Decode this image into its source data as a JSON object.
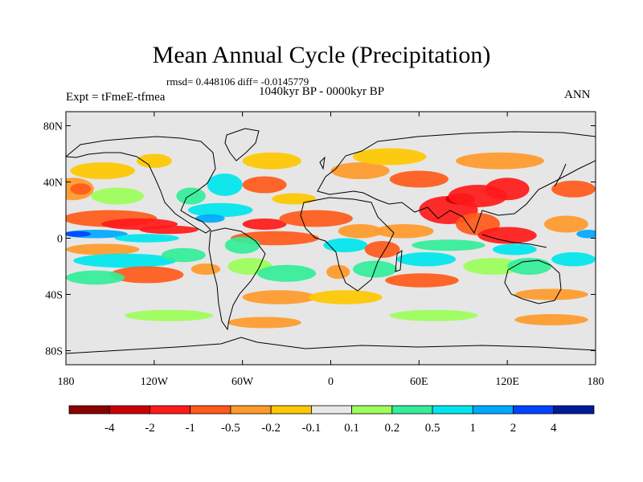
{
  "title": "Mean Annual Cycle (Precipitation)",
  "stats": "rmsd= 0.448106 diff= -0.0145779",
  "period": "1040kyr BP - 0000kyr BP",
  "experiment": "Expt = tFmeE-tfmea",
  "season": "ANN",
  "axes": {
    "lat_ticks": [
      {
        "label": "80N",
        "value": 80
      },
      {
        "label": "40N",
        "value": 40
      },
      {
        "label": "0",
        "value": 0
      },
      {
        "label": "40S",
        "value": -40
      },
      {
        "label": "80S",
        "value": -80
      }
    ],
    "lon_ticks": [
      {
        "label": "180",
        "value": -180
      },
      {
        "label": "120W",
        "value": -120
      },
      {
        "label": "60W",
        "value": -60
      },
      {
        "label": "0",
        "value": 0
      },
      {
        "label": "60E",
        "value": 60
      },
      {
        "label": "120E",
        "value": 120
      },
      {
        "label": "180",
        "value": 180
      }
    ],
    "lon_range": [
      -180,
      180
    ],
    "lat_range": [
      -90,
      90
    ]
  },
  "colorbar": {
    "colors": [
      "#8b0000",
      "#cc0000",
      "#ff1a1a",
      "#ff5a1a",
      "#ff9a2a",
      "#ffc800",
      "#e8e8e8",
      "#9cff5a",
      "#33ee99",
      "#00e6ee",
      "#00a8ff",
      "#0044ff",
      "#001a99"
    ],
    "labels": [
      "-4",
      "-2",
      "-1",
      "-0.5",
      "-0.2",
      "-0.1",
      "0.1",
      "0.2",
      "0.5",
      "1",
      "2",
      "4"
    ]
  },
  "field": {
    "background_color": "#e6e6e6",
    "blobs": [
      {
        "lon": -175,
        "lat": 35,
        "rx": 14,
        "ry": 8,
        "level": 4
      },
      {
        "lon": -170,
        "lat": 35,
        "rx": 7,
        "ry": 4,
        "level": 3
      },
      {
        "lon": -155,
        "lat": 48,
        "rx": 22,
        "ry": 6,
        "level": 5
      },
      {
        "lon": -120,
        "lat": 55,
        "rx": 12,
        "ry": 5,
        "level": 5
      },
      {
        "lon": -145,
        "lat": 30,
        "rx": 18,
        "ry": 6,
        "level": 7
      },
      {
        "lon": -150,
        "lat": 14,
        "rx": 32,
        "ry": 6,
        "level": 3
      },
      {
        "lon": -130,
        "lat": 10,
        "rx": 26,
        "ry": 4,
        "level": 2
      },
      {
        "lon": -110,
        "lat": 6,
        "rx": 20,
        "ry": 3,
        "level": 2
      },
      {
        "lon": -160,
        "lat": 3,
        "rx": 22,
        "ry": 3,
        "level": 10
      },
      {
        "lon": -172,
        "lat": 3,
        "rx": 9,
        "ry": 2,
        "level": 11
      },
      {
        "lon": -125,
        "lat": 0,
        "rx": 22,
        "ry": 3,
        "level": 9
      },
      {
        "lon": -155,
        "lat": -8,
        "rx": 25,
        "ry": 4,
        "level": 4
      },
      {
        "lon": -140,
        "lat": -16,
        "rx": 35,
        "ry": 5,
        "level": 9
      },
      {
        "lon": -125,
        "lat": -26,
        "rx": 25,
        "ry": 6,
        "level": 3
      },
      {
        "lon": -160,
        "lat": -28,
        "rx": 20,
        "ry": 5,
        "level": 8
      },
      {
        "lon": -100,
        "lat": -12,
        "rx": 15,
        "ry": 5,
        "level": 8
      },
      {
        "lon": -75,
        "lat": 20,
        "rx": 22,
        "ry": 5,
        "level": 9
      },
      {
        "lon": -82,
        "lat": 14,
        "rx": 10,
        "ry": 3,
        "level": 10
      },
      {
        "lon": -72,
        "lat": 38,
        "rx": 12,
        "ry": 8,
        "level": 9
      },
      {
        "lon": -95,
        "lat": 30,
        "rx": 10,
        "ry": 6,
        "level": 8
      },
      {
        "lon": -45,
        "lat": 38,
        "rx": 15,
        "ry": 6,
        "level": 3
      },
      {
        "lon": -40,
        "lat": 55,
        "rx": 20,
        "ry": 6,
        "level": 5
      },
      {
        "lon": -38,
        "lat": 0,
        "rx": 30,
        "ry": 5,
        "level": 3
      },
      {
        "lon": -45,
        "lat": 10,
        "rx": 15,
        "ry": 4,
        "level": 2
      },
      {
        "lon": -60,
        "lat": -5,
        "rx": 12,
        "ry": 6,
        "level": 8
      },
      {
        "lon": -55,
        "lat": -20,
        "rx": 15,
        "ry": 6,
        "level": 7
      },
      {
        "lon": -85,
        "lat": -22,
        "rx": 10,
        "ry": 4,
        "level": 4
      },
      {
        "lon": -30,
        "lat": -25,
        "rx": 20,
        "ry": 6,
        "level": 8
      },
      {
        "lon": -35,
        "lat": -42,
        "rx": 25,
        "ry": 5,
        "level": 4
      },
      {
        "lon": -45,
        "lat": -60,
        "rx": 25,
        "ry": 4,
        "level": 4
      },
      {
        "lon": -10,
        "lat": 14,
        "rx": 25,
        "ry": 6,
        "level": 3
      },
      {
        "lon": -25,
        "lat": 28,
        "rx": 15,
        "ry": 4,
        "level": 5
      },
      {
        "lon": 10,
        "lat": -5,
        "rx": 15,
        "ry": 5,
        "level": 9
      },
      {
        "lon": 20,
        "lat": 5,
        "rx": 15,
        "ry": 5,
        "level": 4
      },
      {
        "lon": 35,
        "lat": -8,
        "rx": 12,
        "ry": 6,
        "level": 3
      },
      {
        "lon": 30,
        "lat": -22,
        "rx": 15,
        "ry": 6,
        "level": 8
      },
      {
        "lon": 5,
        "lat": -24,
        "rx": 8,
        "ry": 5,
        "level": 4
      },
      {
        "lon": 10,
        "lat": -42,
        "rx": 25,
        "ry": 5,
        "level": 5
      },
      {
        "lon": 20,
        "lat": 48,
        "rx": 20,
        "ry": 6,
        "level": 4
      },
      {
        "lon": 40,
        "lat": 58,
        "rx": 25,
        "ry": 6,
        "level": 5
      },
      {
        "lon": 60,
        "lat": 42,
        "rx": 20,
        "ry": 6,
        "level": 3
      },
      {
        "lon": 50,
        "lat": 5,
        "rx": 20,
        "ry": 5,
        "level": 4
      },
      {
        "lon": 65,
        "lat": -15,
        "rx": 20,
        "ry": 5,
        "level": 9
      },
      {
        "lon": 80,
        "lat": -5,
        "rx": 25,
        "ry": 4,
        "level": 8
      },
      {
        "lon": 62,
        "lat": -30,
        "rx": 25,
        "ry": 5,
        "level": 3
      },
      {
        "lon": 80,
        "lat": 20,
        "rx": 20,
        "ry": 10,
        "level": 2
      },
      {
        "lon": 88,
        "lat": 28,
        "rx": 10,
        "ry": 4,
        "level": 1
      },
      {
        "lon": 100,
        "lat": 30,
        "rx": 20,
        "ry": 8,
        "level": 2
      },
      {
        "lon": 120,
        "lat": 35,
        "rx": 15,
        "ry": 8,
        "level": 2
      },
      {
        "lon": 115,
        "lat": 55,
        "rx": 30,
        "ry": 6,
        "level": 4
      },
      {
        "lon": 100,
        "lat": 10,
        "rx": 15,
        "ry": 8,
        "level": 3
      },
      {
        "lon": 120,
        "lat": 2,
        "rx": 20,
        "ry": 6,
        "level": 2
      },
      {
        "lon": 125,
        "lat": -8,
        "rx": 15,
        "ry": 4,
        "level": 9
      },
      {
        "lon": 110,
        "lat": -20,
        "rx": 20,
        "ry": 6,
        "level": 7
      },
      {
        "lon": 135,
        "lat": -20,
        "rx": 15,
        "ry": 6,
        "level": 8
      },
      {
        "lon": 160,
        "lat": 10,
        "rx": 15,
        "ry": 6,
        "level": 4
      },
      {
        "lon": 165,
        "lat": -15,
        "rx": 15,
        "ry": 5,
        "level": 9
      },
      {
        "lon": 165,
        "lat": 35,
        "rx": 15,
        "ry": 6,
        "level": 3
      },
      {
        "lon": 150,
        "lat": -40,
        "rx": 25,
        "ry": 4,
        "level": 4
      },
      {
        "lon": 175,
        "lat": 3,
        "rx": 8,
        "ry": 3,
        "level": 10
      },
      {
        "lon": 150,
        "lat": -58,
        "rx": 25,
        "ry": 4,
        "level": 4
      },
      {
        "lon": 70,
        "lat": -55,
        "rx": 30,
        "ry": 4,
        "level": 7
      },
      {
        "lon": -110,
        "lat": -55,
        "rx": 30,
        "ry": 4,
        "level": 7
      }
    ]
  }
}
